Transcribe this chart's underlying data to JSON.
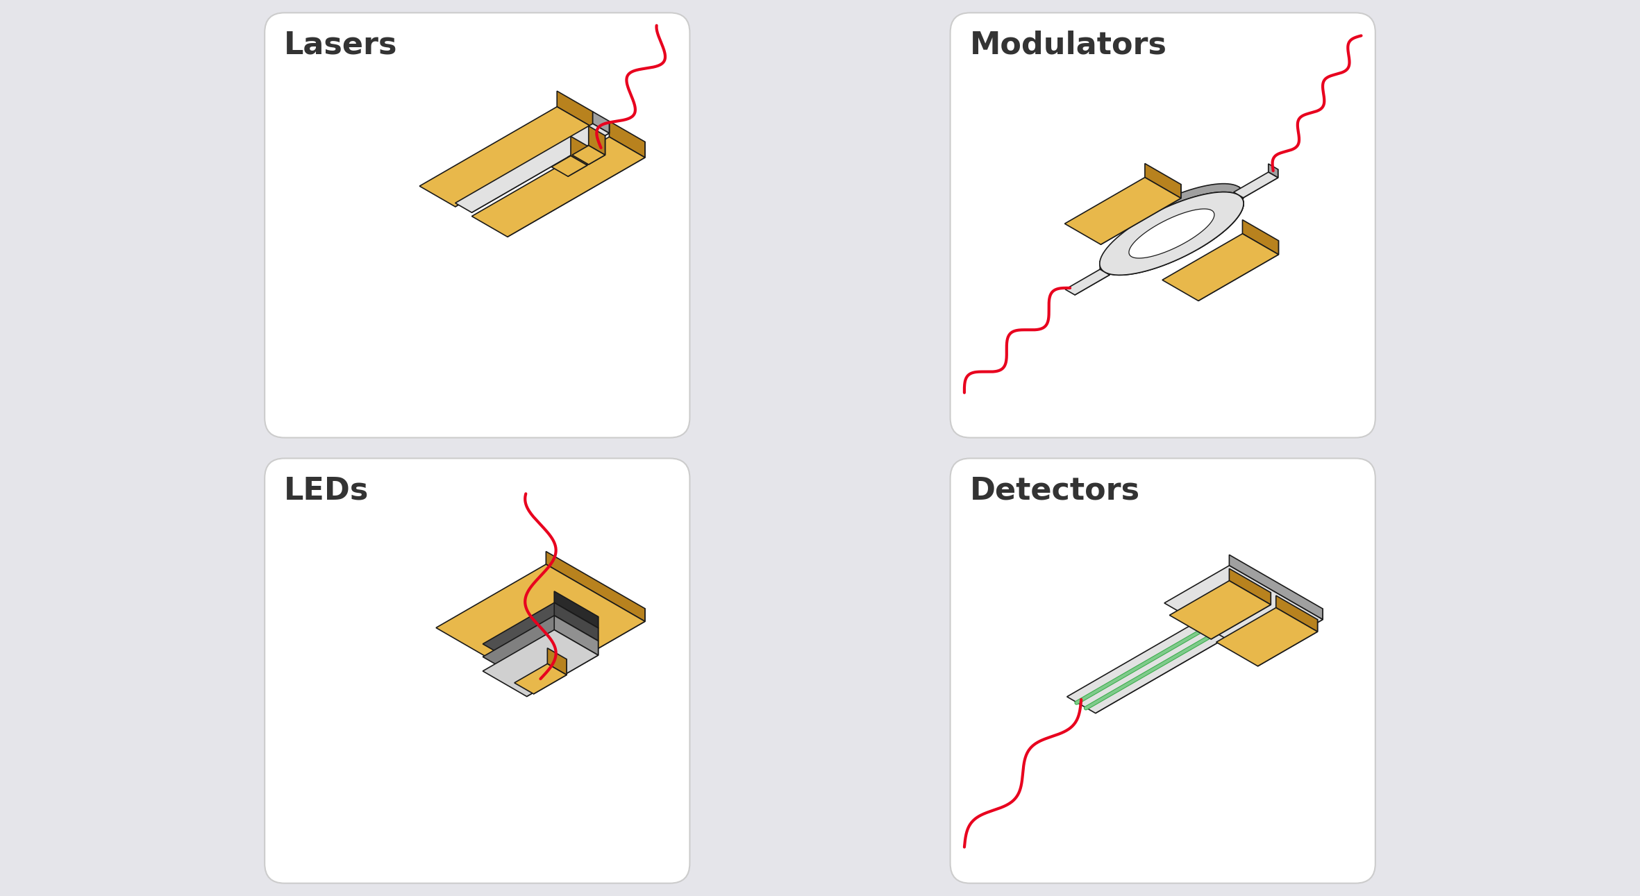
{
  "bg_color": "#e5e5ea",
  "panel_bg": "#ffffff",
  "gold_top": "#e8b84b",
  "gold_front": "#d4952a",
  "gold_side": "#b8821e",
  "gold_edge": "#c08020",
  "silver_top": "#e2e2e2",
  "silver_front": "#c0c0c0",
  "silver_side": "#a0a0a0",
  "dark1": "#505050",
  "dark2": "#707070",
  "dark3": "#909090",
  "green_fill": "#7ecb8a",
  "green_edge": "#3aaa4a",
  "red_wave": "#e8001e",
  "outline": "#1a1a1a",
  "text_color": "#333333",
  "title_fontsize": 32,
  "labels": [
    "Lasers",
    "Modulators",
    "LEDs",
    "Detectors"
  ],
  "figsize": [
    23.62,
    12.91
  ]
}
